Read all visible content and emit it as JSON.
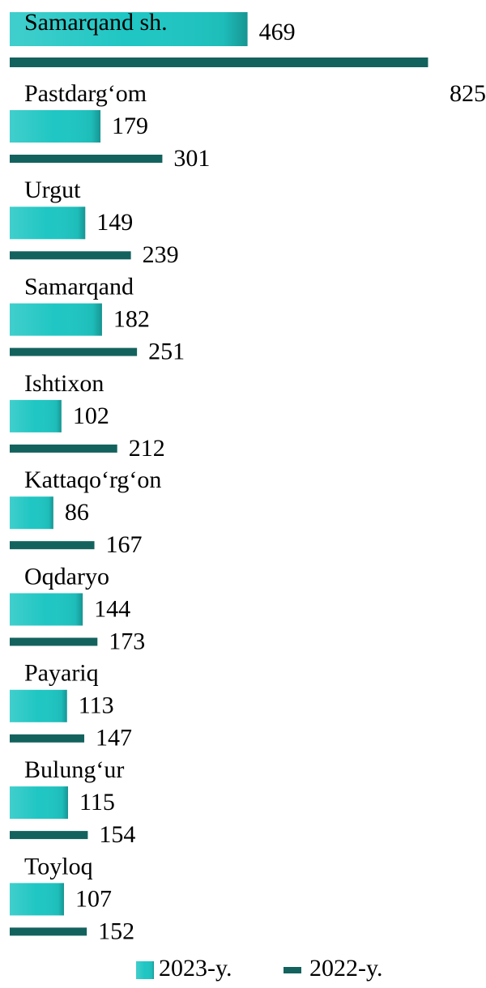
{
  "chart_data": {
    "type": "bar",
    "orientation": "horizontal",
    "categories": [
      "Samarqand sh.",
      "Pastdarg‘om",
      "Urgut",
      "Samarqand",
      "Ishtixon",
      "Kattaqo‘rg‘on",
      "Oqdaryo",
      "Payariq",
      "Bulung‘ur",
      "Toyloq"
    ],
    "series": [
      {
        "name": "2023-y.",
        "color": "#1fc6c3",
        "values": [
          469,
          179,
          149,
          182,
          102,
          86,
          144,
          113,
          115,
          107
        ]
      },
      {
        "name": "2022-y.",
        "color": "#13625e",
        "values": [
          825,
          301,
          239,
          251,
          212,
          167,
          173,
          147,
          154,
          152
        ]
      }
    ],
    "legend": "bottom"
  }
}
